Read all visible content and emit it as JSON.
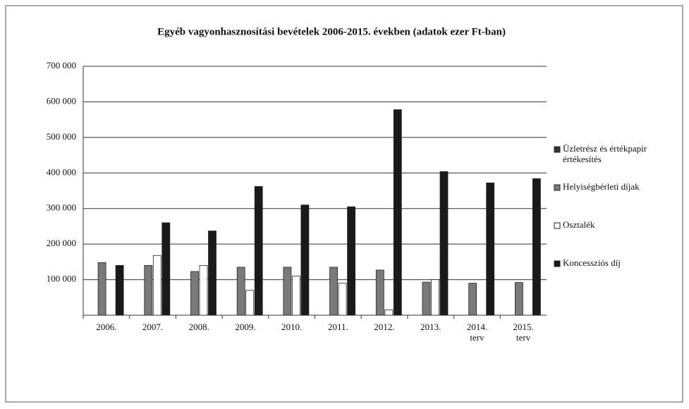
{
  "chart_data": {
    "type": "bar",
    "title": "Egyéb vagyonhasznosítási bevételek 2006-2015. években (adatok ezer Ft-ban)",
    "categories": [
      "2006.",
      "2007.",
      "2008.",
      "2009.",
      "2010.",
      "2011.",
      "2012.",
      "2013.",
      "2014.\nterv",
      "2015.\nterv"
    ],
    "series": [
      {
        "name": "Üzletrész és értékpapír\nértékesítés",
        "color": "#333333",
        "values": [
          0,
          0,
          0,
          0,
          0,
          0,
          0,
          0,
          0,
          0
        ]
      },
      {
        "name": "Helyiségbérleti díjak",
        "color": "#7a7a7a",
        "values": [
          148000,
          140000,
          123000,
          135000,
          135000,
          135000,
          127000,
          93000,
          90000,
          92000
        ]
      },
      {
        "name": "Osztalék",
        "color": "#ffffff",
        "values": [
          0,
          168000,
          140000,
          70000,
          110000,
          90000,
          15000,
          100000,
          0,
          0
        ]
      },
      {
        "name": "Koncessziós díj",
        "color": "#1a1a1a",
        "values": [
          140000,
          260000,
          237000,
          362000,
          310000,
          305000,
          578000,
          404000,
          372000,
          384000
        ]
      }
    ],
    "ylim": [
      0,
      700000
    ],
    "yticks": [
      {
        "value": 100000,
        "label": "100 000"
      },
      {
        "value": 200000,
        "label": "200 000"
      },
      {
        "value": 300000,
        "label": "300 000"
      },
      {
        "value": 400000,
        "label": "400 000"
      },
      {
        "value": 500000,
        "label": "500 000"
      },
      {
        "value": 600000,
        "label": "600 000"
      },
      {
        "value": 700000,
        "label": "700 000"
      }
    ],
    "grid": true,
    "legend": "right"
  }
}
